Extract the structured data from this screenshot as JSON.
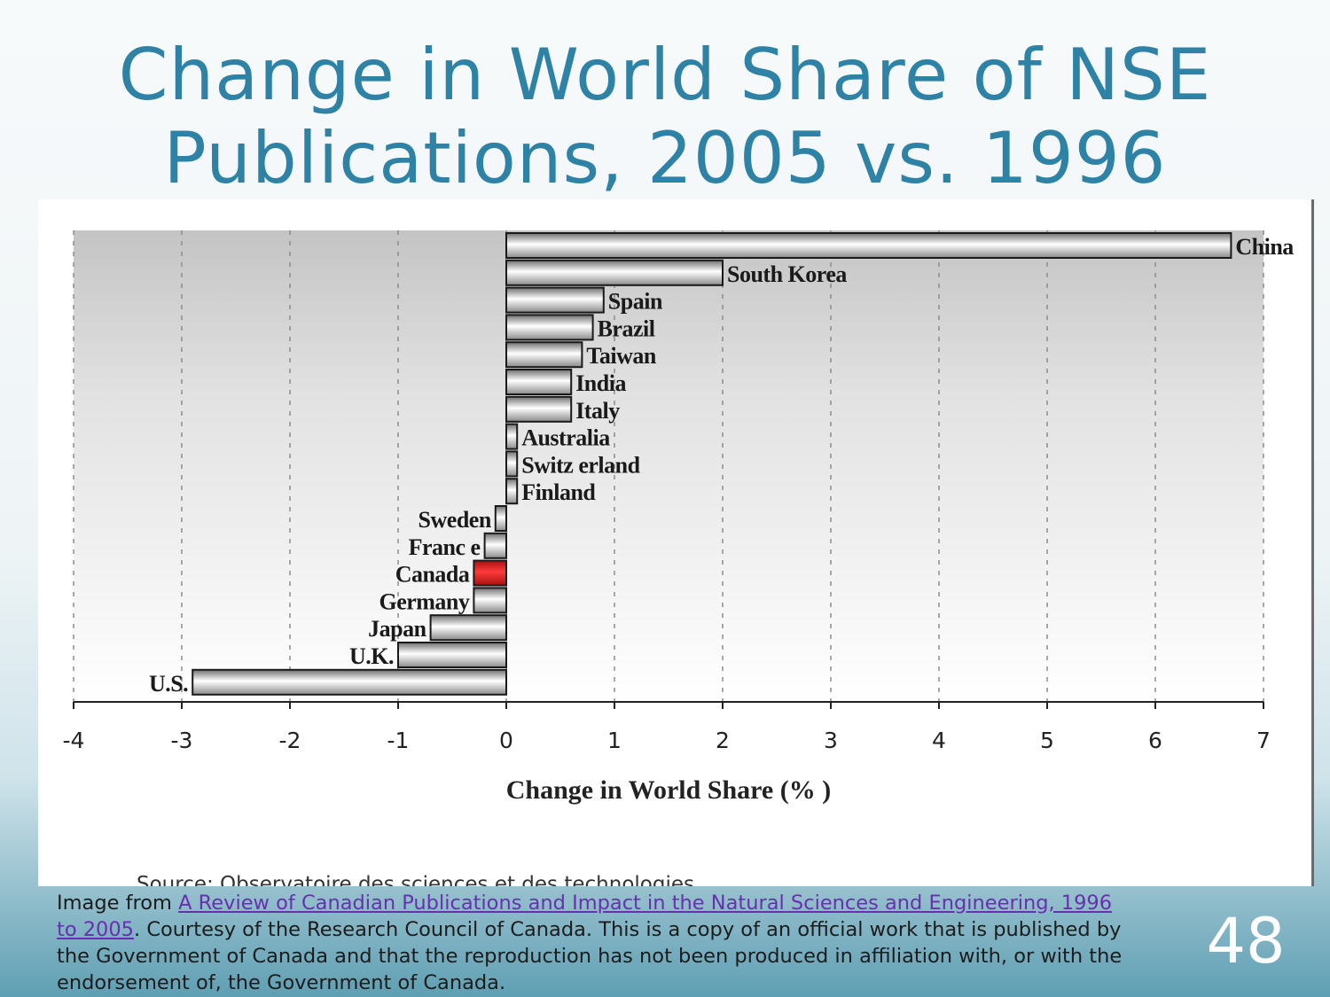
{
  "slide": {
    "title_line1": "Change in World Share of NSE",
    "title_line2": "Publications, 2005 vs. 1996",
    "number": "48"
  },
  "caption": {
    "prefix": "Image from ",
    "link_text": "A Review of Canadian Publications and Impact in the Natural Sciences and Engineering, 1996 to 2005",
    "suffix": ". Courtesy of the Research Council of Canada. This is a copy of an official work that is published by the Government of Canada and that the reproduction has not been produced in affiliation with, or with the endorsement of, the Government of Canada."
  },
  "colors": {
    "title": "#2e82a6",
    "highlight_bar": "#d81b1b",
    "link": "#6a2fb0"
  },
  "chart_data": {
    "type": "bar",
    "orientation": "horizontal",
    "categories": [
      "China",
      "South Korea",
      "Spain",
      "Brazil",
      "Taiwan",
      "India",
      "Italy",
      "Australia",
      "Switzerland",
      "Finland",
      "Sweden",
      "France",
      "Canada",
      "Germany",
      "Japan",
      "U.K.",
      "U.S."
    ],
    "category_labels": [
      "China",
      "South Korea",
      "Spain",
      "Brazil",
      "Taiwan",
      "India",
      "Italy",
      "Australia",
      "Switz erland",
      "Finland",
      "Sweden",
      "Franc e",
      "Canada",
      "Germany",
      "Japan",
      "U.K.",
      "U.S."
    ],
    "values": [
      6.7,
      2.0,
      0.9,
      0.8,
      0.7,
      0.6,
      0.6,
      0.1,
      0.1,
      0.1,
      -0.1,
      -0.2,
      -0.3,
      -0.3,
      -0.7,
      -1.0,
      -2.9
    ],
    "highlight": "Canada",
    "xlabel": "Change in World  Share (% )",
    "xlim": [
      -4,
      7
    ],
    "xticks": [
      "-4",
      "-3",
      "-2",
      "-1",
      "0",
      "1",
      "2",
      "3",
      "4",
      "5",
      "6",
      "7"
    ],
    "grid": true,
    "source": "Source: Observatoire des sciences et des technologies"
  }
}
